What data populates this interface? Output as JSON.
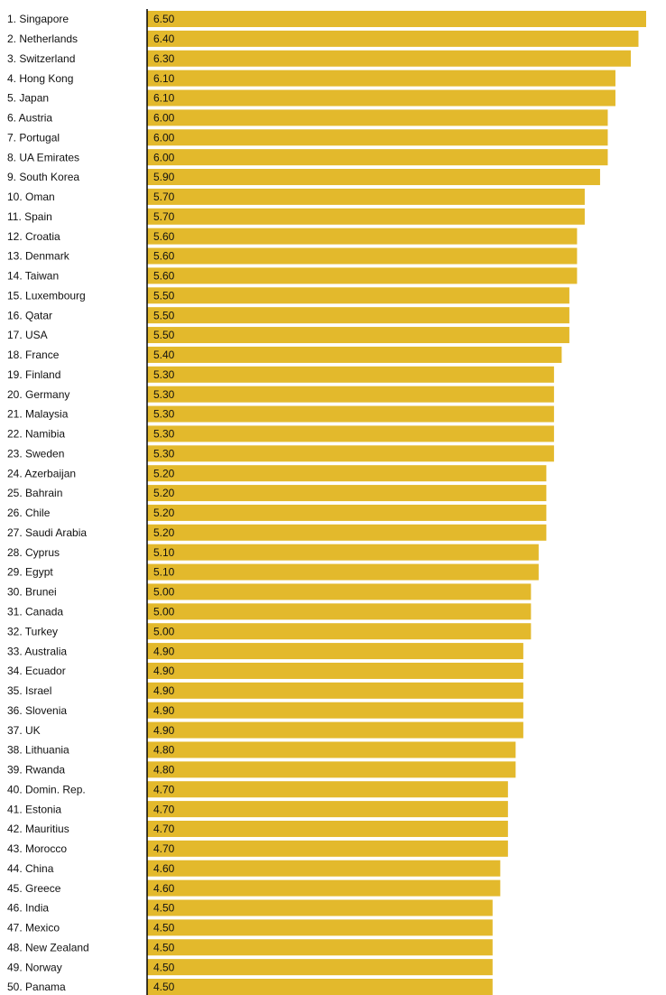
{
  "chart_data": {
    "type": "hbar",
    "categories": [
      "1. Singapore",
      "2. Netherlands",
      "3. Switzerland",
      "4. Hong Kong",
      "5. Japan",
      "6. Austria",
      "7. Portugal",
      "8. UA Emirates",
      "9. South Korea",
      "10. Oman",
      "11. Spain",
      "12. Croatia",
      "13. Denmark",
      "14. Taiwan",
      "15. Luxembourg",
      "16. Qatar",
      "17. USA",
      "18. France",
      "19. Finland",
      "20. Germany",
      "21. Malaysia",
      "22. Namibia",
      "23. Sweden",
      "24. Azerbaijan",
      "25. Bahrain",
      "26. Chile",
      "27. Saudi Arabia",
      "28. Cyprus",
      "29. Egypt",
      "30. Brunei",
      "31. Canada",
      "32. Turkey",
      "33. Australia",
      "34. Ecuador",
      "35. Israel",
      "36. Slovenia",
      "37. UK",
      "38. Lithuania",
      "39. Rwanda",
      "40. Domin. Rep.",
      "41. Estonia",
      "42. Mauritius",
      "43. Morocco",
      "44. China",
      "45. Greece",
      "46. India",
      "47. Mexico",
      "48. New Zealand",
      "49. Norway",
      "50. Panama"
    ],
    "values": [
      6.5,
      6.4,
      6.3,
      6.1,
      6.1,
      6.0,
      6.0,
      6.0,
      5.9,
      5.7,
      5.7,
      5.6,
      5.6,
      5.6,
      5.5,
      5.5,
      5.5,
      5.4,
      5.3,
      5.3,
      5.3,
      5.3,
      5.3,
      5.2,
      5.2,
      5.2,
      5.2,
      5.1,
      5.1,
      5.0,
      5.0,
      5.0,
      4.9,
      4.9,
      4.9,
      4.9,
      4.9,
      4.8,
      4.8,
      4.7,
      4.7,
      4.7,
      4.7,
      4.6,
      4.6,
      4.5,
      4.5,
      4.5,
      4.5,
      4.5
    ],
    "value_labels": [
      "6.50",
      "6.40",
      "6.30",
      "6.10",
      "6.10",
      "6.00",
      "6.00",
      "6.00",
      "5.90",
      "5.70",
      "5.70",
      "5.60",
      "5.60",
      "5.60",
      "5.50",
      "5.50",
      "5.50",
      "5.40",
      "5.30",
      "5.30",
      "5.30",
      "5.30",
      "5.30",
      "5.20",
      "5.20",
      "5.20",
      "5.20",
      "5.10",
      "5.10",
      "5.00",
      "5.00",
      "5.00",
      "4.90",
      "4.90",
      "4.90",
      "4.90",
      "4.90",
      "4.80",
      "4.80",
      "4.70",
      "4.70",
      "4.70",
      "4.70",
      "4.60",
      "4.60",
      "4.50",
      "4.50",
      "4.50",
      "4.50",
      "4.50"
    ],
    "color": "#e3b92c",
    "xlim": [
      0,
      6.5
    ]
  }
}
